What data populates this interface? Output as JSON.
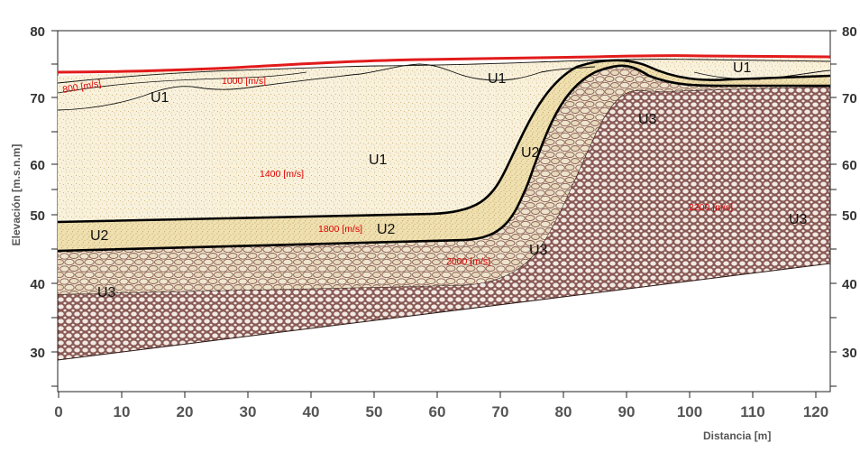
{
  "figure": {
    "y_axis_title": "Elevación [m.s.n.m]",
    "x_axis_title": "Distancia [m]",
    "y_ticks": [
      "30",
      "40",
      "50",
      "60",
      "70",
      "80"
    ],
    "x_ticks": [
      "0",
      "10",
      "20",
      "30",
      "40",
      "50",
      "60",
      "70",
      "80",
      "90",
      "100",
      "110",
      "120"
    ],
    "unit_labels": [
      "U1",
      "U1",
      "U1",
      "U1",
      "U2",
      "U2",
      "U2",
      "U3",
      "U3",
      "U3",
      "U3"
    ],
    "velocity_labels": [
      "800 [m/s]",
      "1000 [m/s]",
      "1400 [m/s]",
      "1800 [m/s]",
      "2000 [m/s]",
      "2200 [m/s]"
    ],
    "colors": {
      "surface_line": "#e21b1b",
      "u1_fill": "#f7efd9",
      "u2_fill": "#ecdcaa",
      "u3_cobble_fill": "#e8dcc0",
      "u3_mesh_fill": "#8a5a55",
      "velocity_text": "#e00000"
    }
  }
}
